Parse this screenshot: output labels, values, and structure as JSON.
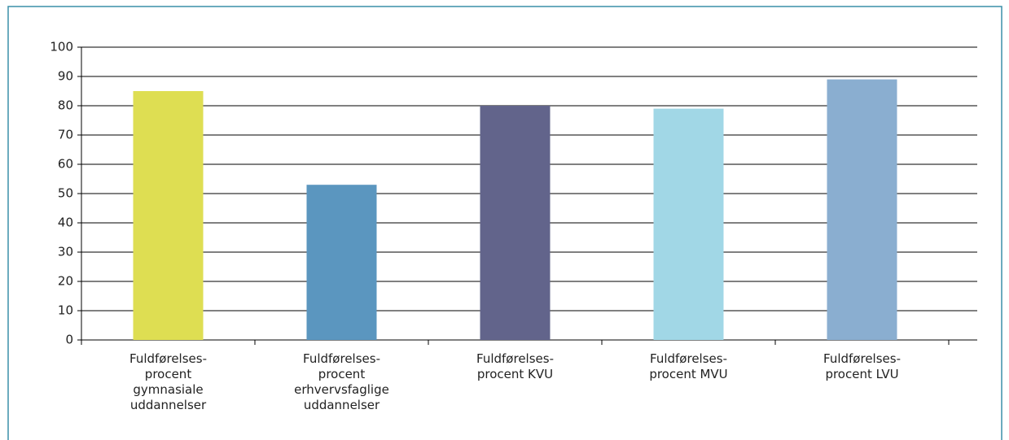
{
  "chart_data": {
    "type": "bar",
    "categories": [
      "Fuldførelses-procent gymnasiale uddannelser",
      "Fuldførelses-procent erhvervsfaglige uddannelser",
      "Fuldførelses-procent KVU",
      "Fuldførelses-procent MVU",
      "Fuldførelses-procent LVU"
    ],
    "values": [
      85,
      53,
      80,
      79,
      89
    ],
    "colors": [
      "#dede52",
      "#5b96bf",
      "#62648b",
      "#a1d7e6",
      "#8aaed0"
    ],
    "ylim": [
      0,
      100
    ],
    "yticks": [
      0,
      10,
      20,
      30,
      40,
      50,
      60,
      70,
      80,
      90,
      100
    ],
    "grid": true
  }
}
